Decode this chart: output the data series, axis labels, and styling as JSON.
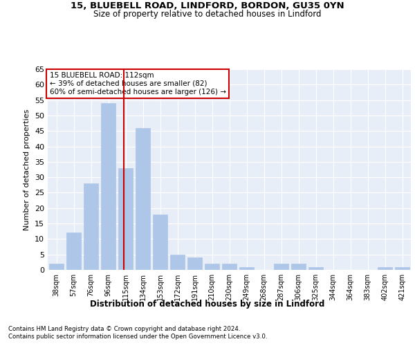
{
  "title1": "15, BLUEBELL ROAD, LINDFORD, BORDON, GU35 0YN",
  "title2": "Size of property relative to detached houses in Lindford",
  "xlabel": "Distribution of detached houses by size in Lindford",
  "ylabel": "Number of detached properties",
  "categories": [
    "38sqm",
    "57sqm",
    "76sqm",
    "96sqm",
    "115sqm",
    "134sqm",
    "153sqm",
    "172sqm",
    "191sqm",
    "210sqm",
    "230sqm",
    "249sqm",
    "268sqm",
    "287sqm",
    "306sqm",
    "325sqm",
    "344sqm",
    "364sqm",
    "383sqm",
    "402sqm",
    "421sqm"
  ],
  "values": [
    2,
    12,
    28,
    54,
    33,
    46,
    18,
    5,
    4,
    2,
    2,
    1,
    0,
    2,
    2,
    1,
    0,
    0,
    0,
    1,
    1
  ],
  "bar_color": "#aec6e8",
  "bar_edgecolor": "#aec6e8",
  "vline_x": 3.88,
  "vline_color": "#cc0000",
  "annotation_text": "15 BLUEBELL ROAD: 112sqm\n← 39% of detached houses are smaller (82)\n60% of semi-detached houses are larger (126) →",
  "annotation_boxcolor": "white",
  "annotation_edgecolor": "#cc0000",
  "footer1": "Contains HM Land Registry data © Crown copyright and database right 2024.",
  "footer2": "Contains public sector information licensed under the Open Government Licence v3.0.",
  "ylim": [
    0,
    65
  ],
  "yticks": [
    0,
    5,
    10,
    15,
    20,
    25,
    30,
    35,
    40,
    45,
    50,
    55,
    60,
    65
  ],
  "bg_color": "#e8eef7",
  "fig_bg_color": "#ffffff"
}
